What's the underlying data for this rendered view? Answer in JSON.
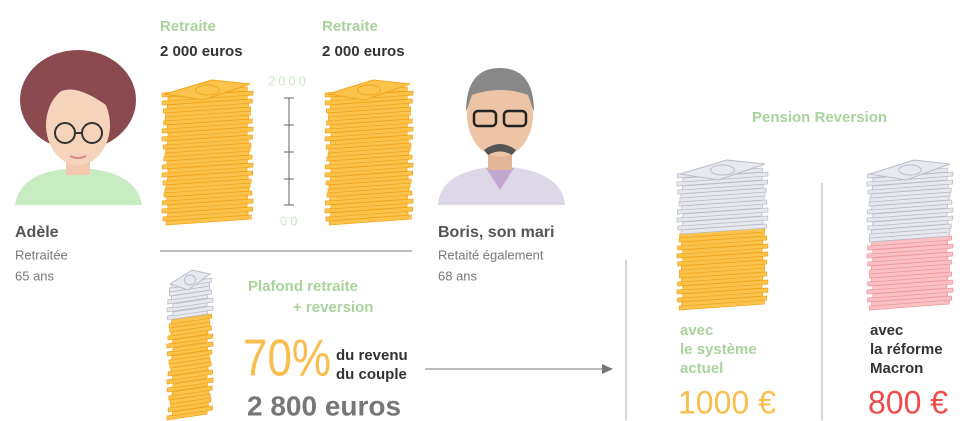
{
  "adele": {
    "name": "Adèle",
    "status": "Retraitée",
    "age": "65 ans"
  },
  "boris": {
    "name": "Boris, son mari",
    "status": "Retaité également",
    "age": "68 ans"
  },
  "left_stack": {
    "label": "Retraite",
    "amount": "2 000 euros"
  },
  "right_stack": {
    "label": "Retraite",
    "amount": "2 000 euros"
  },
  "scale": {
    "top": "2000",
    "bottom": "00"
  },
  "ceiling": {
    "title": "Plafond retraite",
    "subtitle": "+ reversion",
    "percent": "70%",
    "desc": [
      "du revenu",
      "du couple"
    ],
    "amount": "2 800 euros"
  },
  "reversion": {
    "title": "Pension Reversion",
    "current": {
      "lines": [
        "avec",
        "le système",
        "actuel"
      ],
      "amount": "1000 €"
    },
    "macron": {
      "lines": [
        "avec",
        "la réforme",
        "Macron"
      ],
      "amount": "800 €"
    }
  }
}
